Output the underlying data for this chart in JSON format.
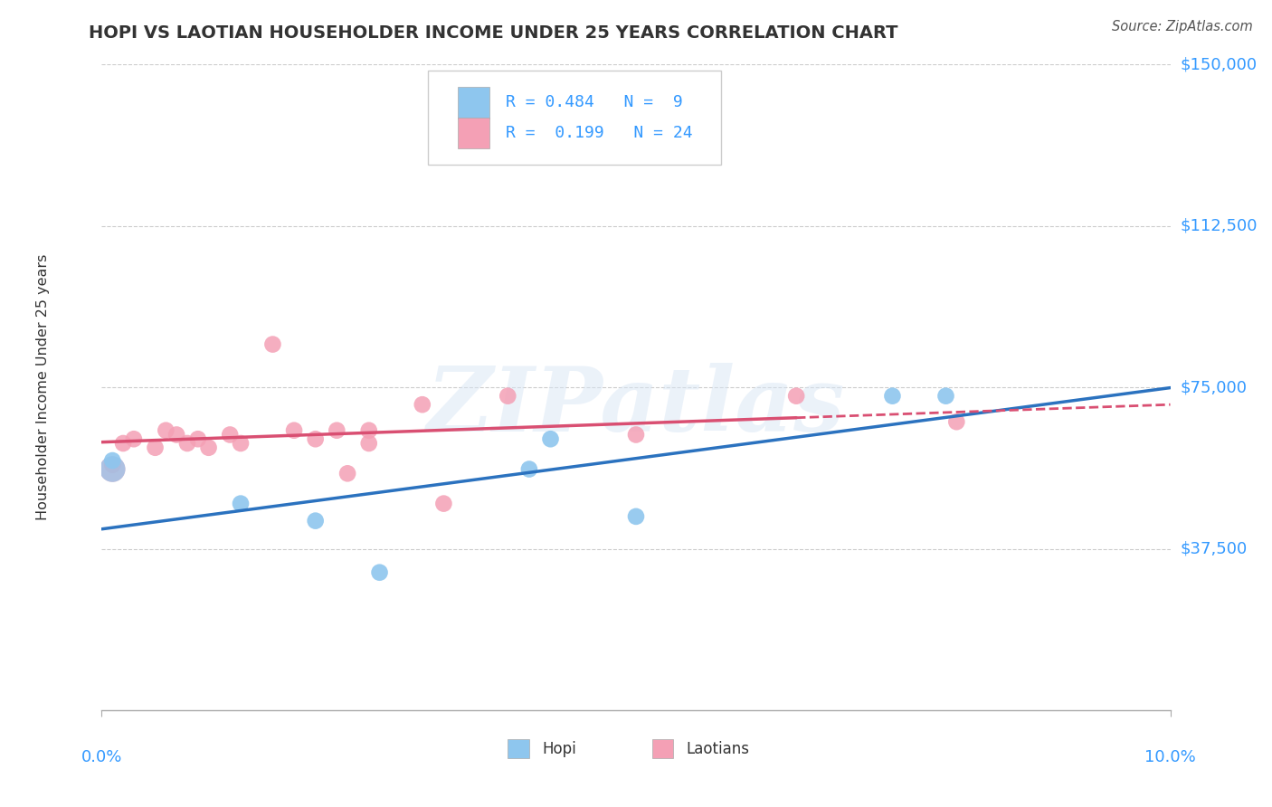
{
  "title": "HOPI VS LAOTIAN HOUSEHOLDER INCOME UNDER 25 YEARS CORRELATION CHART",
  "source": "Source: ZipAtlas.com",
  "ylabel": "Householder Income Under 25 years",
  "xlim": [
    0.0,
    0.1
  ],
  "ylim": [
    0,
    150000
  ],
  "hopi_color": "#8EC6EE",
  "laotian_color": "#F4A0B5",
  "hopi_line_color": "#2B72BF",
  "laotian_line_color": "#D94F72",
  "axis_label_color": "#3399FF",
  "title_color": "#333333",
  "watermark": "ZIPatlas",
  "hopi_x": [
    0.001,
    0.013,
    0.02,
    0.026,
    0.04,
    0.042,
    0.05,
    0.074,
    0.079
  ],
  "hopi_y": [
    58000,
    48000,
    44000,
    32000,
    56000,
    63000,
    45000,
    73000,
    73000
  ],
  "laotian_x": [
    0.001,
    0.002,
    0.003,
    0.005,
    0.006,
    0.007,
    0.008,
    0.009,
    0.01,
    0.012,
    0.013,
    0.016,
    0.018,
    0.02,
    0.022,
    0.023,
    0.025,
    0.025,
    0.03,
    0.032,
    0.038,
    0.05,
    0.065,
    0.08
  ],
  "laotian_y": [
    57000,
    62000,
    63000,
    61000,
    65000,
    64000,
    62000,
    63000,
    61000,
    64000,
    62000,
    85000,
    65000,
    63000,
    65000,
    55000,
    62000,
    65000,
    71000,
    48000,
    73000,
    64000,
    73000,
    67000
  ],
  "ytick_positions": [
    37500,
    75000,
    112500,
    150000
  ],
  "ytick_labels": [
    "$37,500",
    "$75,000",
    "$112,500",
    "$150,000"
  ],
  "scatter_size": 180,
  "big_dot_size": 420,
  "legend_r_hopi": "R = 0.484",
  "legend_n_hopi": "N =  9",
  "legend_r_laotian": "R =  0.199",
  "legend_n_laotian": "N = 24"
}
